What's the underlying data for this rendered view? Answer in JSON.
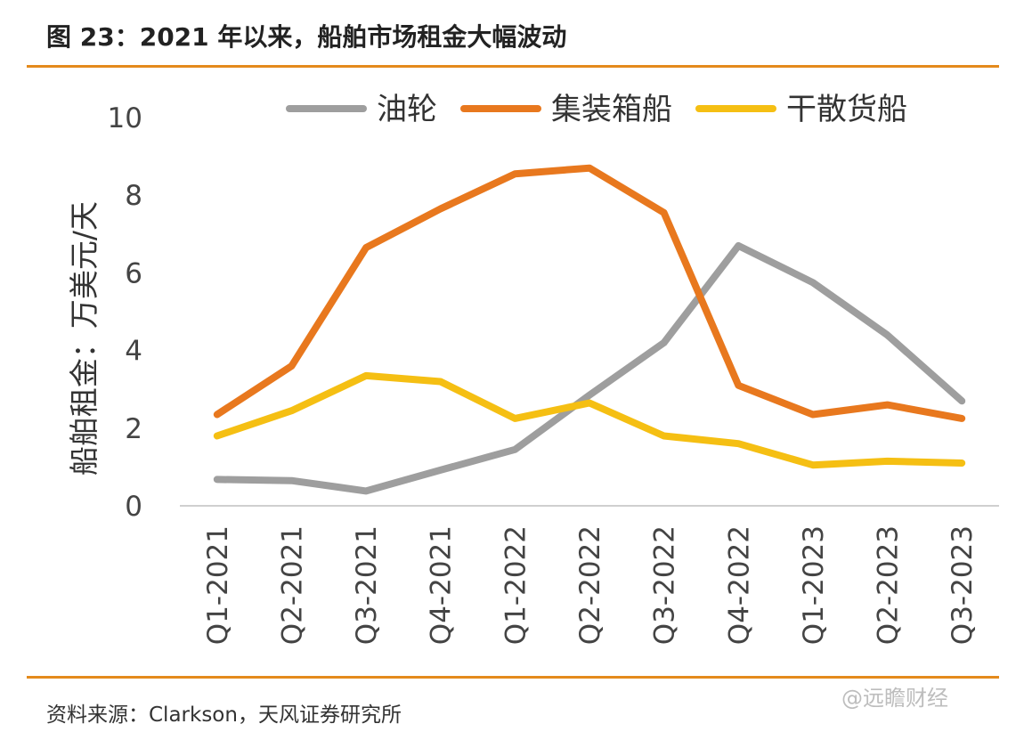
{
  "figure": {
    "title": "图 23：2021 年以来，船舶市场租金大幅波动",
    "source": "资料来源：Clarkson，天风证券研究所",
    "watermark": "@远瞻财经"
  },
  "chart_data": {
    "type": "line",
    "title": "",
    "xlabel": "",
    "ylabel": "船舶租金：万美元/天",
    "ylim": [
      0,
      10
    ],
    "yticks": [
      0,
      2,
      4,
      6,
      8,
      10
    ],
    "grid": false,
    "legend_position": "top",
    "x": [
      "Q1-2021",
      "Q2-2021",
      "Q3-2021",
      "Q4-2021",
      "Q1-2022",
      "Q2-2022",
      "Q3-2022",
      "Q4-2022",
      "Q1-2023",
      "Q2-2023",
      "Q3-2023"
    ],
    "series": [
      {
        "name": "油轮",
        "color": "#9e9e9e",
        "values": [
          0.68,
          0.65,
          0.38,
          0.92,
          1.45,
          2.85,
          4.2,
          6.7,
          5.75,
          4.4,
          2.7
        ]
      },
      {
        "name": "集装箱船",
        "color": "#e8781e",
        "values": [
          2.35,
          3.6,
          6.65,
          7.65,
          8.55,
          8.7,
          7.55,
          3.1,
          2.35,
          2.6,
          2.25
        ]
      },
      {
        "name": "干散货船",
        "color": "#f5bf13",
        "values": [
          1.8,
          2.45,
          3.35,
          3.2,
          2.25,
          2.65,
          1.8,
          1.6,
          1.05,
          1.15,
          1.1
        ]
      }
    ]
  }
}
